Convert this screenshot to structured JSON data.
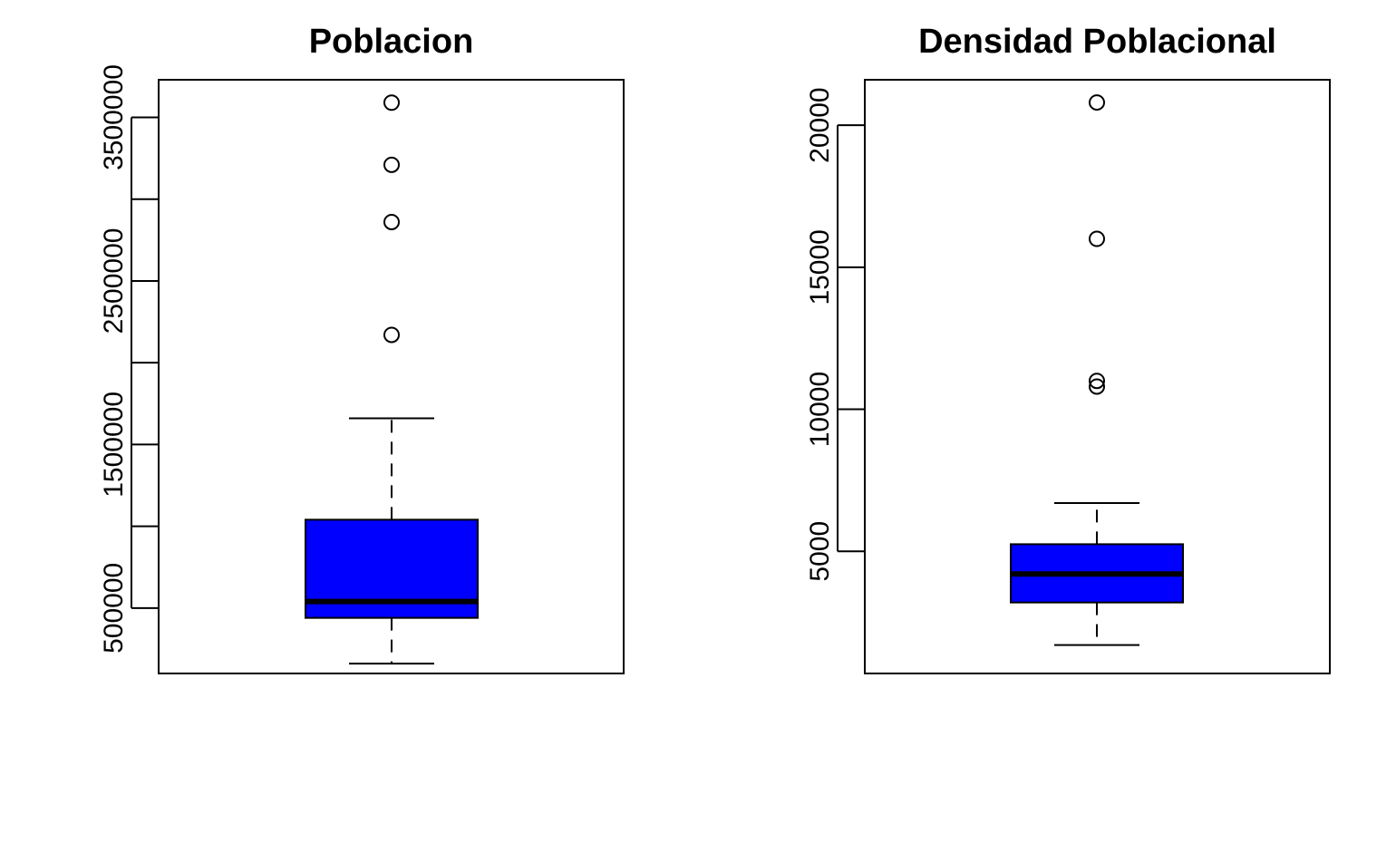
{
  "chart_data": [
    {
      "type": "boxplot",
      "title": "Poblacion",
      "ylim": [
        100000,
        3730000
      ],
      "y_ticks": [
        500000,
        1000000,
        1500000,
        2000000,
        2500000,
        3000000,
        3500000
      ],
      "y_tick_labels": [
        "500000",
        "",
        "1500000",
        "",
        "2500000",
        "",
        "3500000"
      ],
      "box": {
        "min": 160000,
        "q1": 440000,
        "median": 540000,
        "q3": 1040000,
        "max": 1660000,
        "fill": "#0000ff"
      },
      "outliers": [
        2170000,
        2860000,
        3210000,
        3590000
      ]
    },
    {
      "type": "boxplot",
      "title": "Densidad Poblacional",
      "ylim": [
        700,
        21600
      ],
      "y_ticks": [
        5000,
        10000,
        15000,
        20000
      ],
      "y_tick_labels": [
        "5000",
        "10000",
        "15000",
        "20000"
      ],
      "box": {
        "min": 1700,
        "q1": 3200,
        "median": 4200,
        "q3": 5250,
        "max": 6700,
        "fill": "#0000ff"
      },
      "outliers": [
        10800,
        11000,
        16000,
        20800
      ]
    }
  ]
}
